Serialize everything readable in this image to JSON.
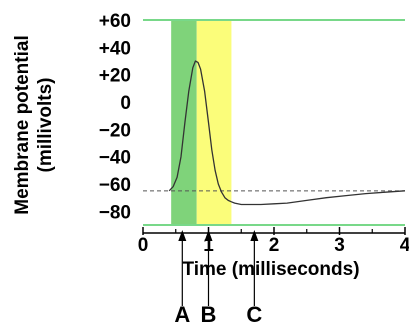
{
  "colors": {
    "background": "#ffffff",
    "green_band": "#7fd37a",
    "yellow_band": "#fbfd7a",
    "frame_line": "#78d889",
    "curve": "#333333",
    "resting_dash": "#555555",
    "text": "#000000"
  },
  "chart_data": {
    "type": "line",
    "xlabel": "Time (milliseconds)",
    "ylabel_line1": "Membrane potential",
    "ylabel_line2": "(millivolts)",
    "xlim": [
      0,
      4
    ],
    "ylim": [
      -90,
      60
    ],
    "x_ticks": [
      0,
      1,
      2,
      3,
      4
    ],
    "x_tick_labels": [
      "0",
      "1",
      "2",
      "3",
      "4"
    ],
    "y_ticks": [
      60,
      40,
      20,
      0,
      -20,
      -40,
      -60,
      -80
    ],
    "y_tick_labels": [
      "+60",
      "+40",
      "+20",
      "0",
      "−20",
      "−40",
      "−60",
      "−80"
    ],
    "resting_potential": -65,
    "bands": [
      {
        "name": "green",
        "x_start": 0.43,
        "x_end": 0.82,
        "color": "#7fd37a"
      },
      {
        "name": "yellow",
        "x_start": 0.82,
        "x_end": 1.35,
        "color": "#fbfd7a"
      }
    ],
    "markers": [
      {
        "label": "A",
        "x": 0.6
      },
      {
        "label": "B",
        "x": 1.0
      },
      {
        "label": "C",
        "x": 1.7
      }
    ],
    "series": [
      {
        "x": [
          0.4,
          0.46,
          0.52,
          0.58,
          0.64,
          0.7,
          0.76,
          0.8,
          0.84,
          0.88,
          0.94,
          1.0,
          1.05,
          1.1,
          1.15,
          1.2,
          1.25,
          1.3,
          1.35,
          1.4,
          1.5,
          1.6,
          1.8,
          2.0,
          2.2,
          2.5,
          2.8,
          3.1,
          3.4,
          3.7,
          4.0
        ],
        "y": [
          -65,
          -62,
          -55,
          -40,
          -15,
          8,
          25,
          30,
          29,
          24,
          8,
          -15,
          -35,
          -50,
          -60,
          -66,
          -70,
          -72,
          -73,
          -74,
          -75,
          -75,
          -75,
          -74.5,
          -74,
          -72,
          -70,
          -68.5,
          -67,
          -66,
          -65
        ]
      }
    ]
  }
}
